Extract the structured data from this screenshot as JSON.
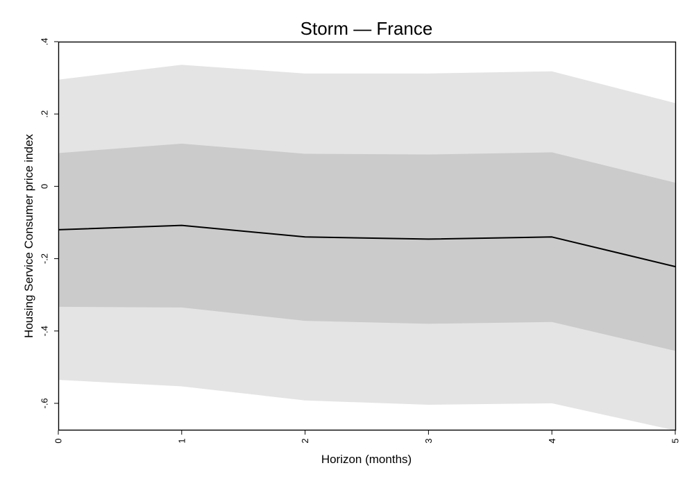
{
  "chart_data": {
    "type": "line",
    "title": "Storm — France",
    "xlabel": "Horizon (months)",
    "ylabel": "Housing Service Consumer price index",
    "x": [
      0,
      1,
      2,
      3,
      4,
      5
    ],
    "x_tick_labels": [
      "0",
      "1",
      "2",
      "3",
      "4",
      "5"
    ],
    "y_ticks": [
      0.4,
      0.2,
      0,
      -0.2,
      -0.4,
      -0.6
    ],
    "y_tick_labels": [
      ".4",
      ".2",
      "0",
      "-.2",
      "-.4",
      "-.6"
    ],
    "xlim": [
      0,
      5
    ],
    "ylim": [
      -0.675,
      0.4
    ],
    "grid": false,
    "series": [
      {
        "values": [
          -0.12,
          -0.108,
          -0.14,
          -0.146,
          -0.14,
          -0.222
        ]
      }
    ],
    "bands": [
      {
        "lower": [
          -0.535,
          -0.553,
          -0.592,
          -0.604,
          -0.6,
          -0.675
        ],
        "upper": [
          0.295,
          0.336,
          0.312,
          0.312,
          0.318,
          0.23
        ]
      },
      {
        "lower": [
          -0.333,
          -0.335,
          -0.372,
          -0.38,
          -0.375,
          -0.455
        ],
        "upper": [
          0.092,
          0.118,
          0.09,
          0.088,
          0.094,
          0.01
        ]
      }
    ],
    "colors": {
      "outer_band": "#e4e4e4",
      "inner_band": "#cbcbcb",
      "line": "#000000"
    }
  }
}
